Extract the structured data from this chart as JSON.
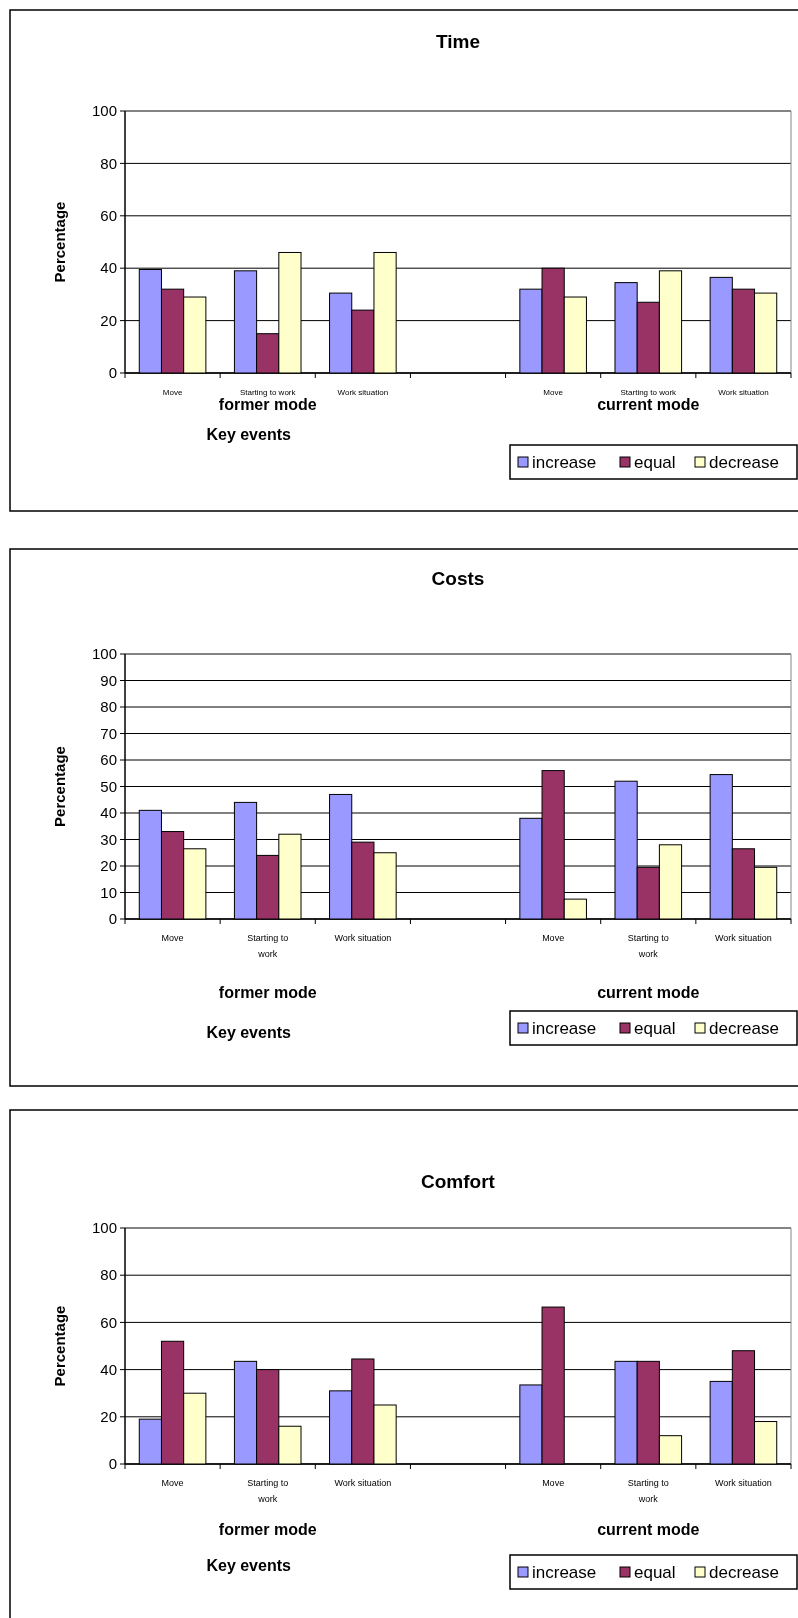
{
  "chart_data": [
    {
      "type": "bar",
      "title": "Time",
      "ylabel": "Percentage",
      "xlabel": "Key events",
      "annotations": [
        "former mode",
        "current mode"
      ],
      "categories": [
        "Move",
        "Starting to work",
        "Work situation",
        null,
        "Move",
        "Starting to work",
        "Work situation"
      ],
      "ylim": [
        0,
        100
      ],
      "yticks": [
        0,
        20,
        40,
        60,
        80,
        100
      ],
      "grid": "y",
      "legend": "bottom right",
      "series": [
        {
          "name": "increase",
          "color": "#9999ff",
          "values": [
            39.5,
            39,
            30.5,
            null,
            32,
            34.5,
            36.5
          ]
        },
        {
          "name": "equal",
          "color": "#993366",
          "values": [
            32,
            15,
            24,
            null,
            40,
            27,
            32
          ]
        },
        {
          "name": "decrease",
          "color": "#ffffcc",
          "values": [
            29,
            46,
            46,
            null,
            29,
            39,
            30.5
          ]
        }
      ]
    },
    {
      "type": "bar",
      "title": "Costs",
      "ylabel": "Percentage",
      "xlabel": "Key events",
      "annotations": [
        "former mode",
        "current mode"
      ],
      "categories": [
        "Move",
        "Starting to work",
        "Work situation",
        null,
        "Move",
        "Starting to work",
        "Work situation"
      ],
      "ylim": [
        0,
        100
      ],
      "yticks": [
        0,
        10,
        20,
        30,
        40,
        50,
        60,
        70,
        80,
        90,
        100
      ],
      "grid": "y",
      "legend": "bottom right",
      "series": [
        {
          "name": "increase",
          "color": "#9999ff",
          "values": [
            41,
            44,
            47,
            null,
            38,
            52,
            54.5
          ]
        },
        {
          "name": "equal",
          "color": "#993366",
          "values": [
            33,
            24,
            29,
            null,
            56,
            19.5,
            26.5
          ]
        },
        {
          "name": "decrease",
          "color": "#ffffcc",
          "values": [
            26.5,
            32,
            25,
            null,
            7.5,
            28,
            19.5
          ]
        }
      ]
    },
    {
      "type": "bar",
      "title": "Comfort",
      "ylabel": "Percentage",
      "xlabel": "Key events",
      "annotations": [
        "former mode",
        "current mode"
      ],
      "categories": [
        "Move",
        "Starting to work",
        "Work situation",
        null,
        "Move",
        "Starting to work",
        "Work situation"
      ],
      "ylim": [
        0,
        100
      ],
      "yticks": [
        0,
        20,
        40,
        60,
        80,
        100
      ],
      "grid": "y",
      "legend": "bottom right",
      "series": [
        {
          "name": "increase",
          "color": "#9999ff",
          "values": [
            19,
            43.5,
            31,
            null,
            33.5,
            43.5,
            35
          ]
        },
        {
          "name": "equal",
          "color": "#993366",
          "values": [
            52,
            40,
            44.5,
            null,
            66.5,
            43.5,
            48
          ]
        },
        {
          "name": "decrease",
          "color": "#ffffcc",
          "values": [
            30,
            16,
            25,
            null,
            null,
            12,
            18
          ]
        }
      ]
    }
  ]
}
